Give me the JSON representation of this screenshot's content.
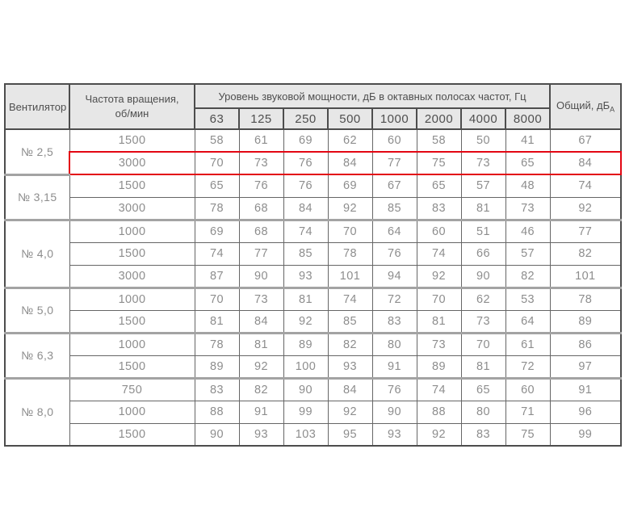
{
  "colors": {
    "highlight_border": "#e30613",
    "header_bg": "#e7e7e7",
    "header_text": "#4f4f4f",
    "body_text": "#8d8d8d",
    "inner_border": "#666666",
    "outer_border": "#4d4d4d",
    "group_border": "#a3a3a3"
  },
  "header": {
    "fan_label": "Вентилятор",
    "speed_label_line1": "Частота вращения,",
    "speed_label_line2": "об/мин",
    "spl_label": "Уровень звуковой мощности, дБ в октавных полосах частот, Гц",
    "total_label": "Общий, дБ",
    "total_sub": "А",
    "frequencies": [
      "63",
      "125",
      "250",
      "500",
      "1000",
      "2000",
      "4000",
      "8000"
    ]
  },
  "chart_data": {
    "type": "table",
    "title": "Уровень звуковой мощности, дБ в октавных полосах частот, Гц",
    "columns": [
      "Вентилятор",
      "Частота вращения, об/мин",
      "63",
      "125",
      "250",
      "500",
      "1000",
      "2000",
      "4000",
      "8000",
      "Общий, дБА"
    ],
    "groups": [
      {
        "fan": "№ 2,5",
        "rows": [
          {
            "rpm": "1500",
            "values": [
              58,
              61,
              69,
              62,
              60,
              58,
              50,
              41
            ],
            "total": 67,
            "highlighted": false
          },
          {
            "rpm": "3000",
            "values": [
              70,
              73,
              76,
              84,
              77,
              75,
              73,
              65
            ],
            "total": 84,
            "highlighted": true
          }
        ]
      },
      {
        "fan": "№ 3,15",
        "rows": [
          {
            "rpm": "1500",
            "values": [
              65,
              76,
              76,
              69,
              67,
              65,
              57,
              48
            ],
            "total": 74,
            "highlighted": false
          },
          {
            "rpm": "3000",
            "values": [
              78,
              68,
              84,
              92,
              85,
              83,
              81,
              73
            ],
            "total": 92,
            "highlighted": false
          }
        ]
      },
      {
        "fan": "№ 4,0",
        "rows": [
          {
            "rpm": "1000",
            "values": [
              69,
              68,
              74,
              70,
              64,
              60,
              51,
              46
            ],
            "total": 77,
            "highlighted": false
          },
          {
            "rpm": "1500",
            "values": [
              74,
              77,
              85,
              78,
              76,
              74,
              66,
              57
            ],
            "total": 82,
            "highlighted": false
          },
          {
            "rpm": "3000",
            "values": [
              87,
              90,
              93,
              101,
              94,
              92,
              90,
              82
            ],
            "total": 101,
            "highlighted": false
          }
        ]
      },
      {
        "fan": "№ 5,0",
        "rows": [
          {
            "rpm": "1000",
            "values": [
              70,
              73,
              81,
              74,
              72,
              70,
              62,
              53
            ],
            "total": 78,
            "highlighted": false
          },
          {
            "rpm": "1500",
            "values": [
              81,
              84,
              92,
              85,
              83,
              81,
              73,
              64
            ],
            "total": 89,
            "highlighted": false
          }
        ]
      },
      {
        "fan": "№ 6,3",
        "rows": [
          {
            "rpm": "1000",
            "values": [
              78,
              81,
              89,
              82,
              80,
              73,
              70,
              61
            ],
            "total": 86,
            "highlighted": false
          },
          {
            "rpm": "1500",
            "values": [
              89,
              92,
              100,
              93,
              91,
              89,
              81,
              72
            ],
            "total": 97,
            "highlighted": false
          }
        ]
      },
      {
        "fan": "№ 8,0",
        "rows": [
          {
            "rpm": "750",
            "values": [
              83,
              82,
              90,
              84,
              76,
              74,
              65,
              60
            ],
            "total": 91,
            "highlighted": false
          },
          {
            "rpm": "1000",
            "values": [
              88,
              91,
              99,
              92,
              90,
              88,
              80,
              71
            ],
            "total": 96,
            "highlighted": false
          },
          {
            "rpm": "1500",
            "values": [
              90,
              93,
              103,
              95,
              93,
              92,
              83,
              75
            ],
            "total": 99,
            "highlighted": false
          }
        ]
      }
    ]
  }
}
